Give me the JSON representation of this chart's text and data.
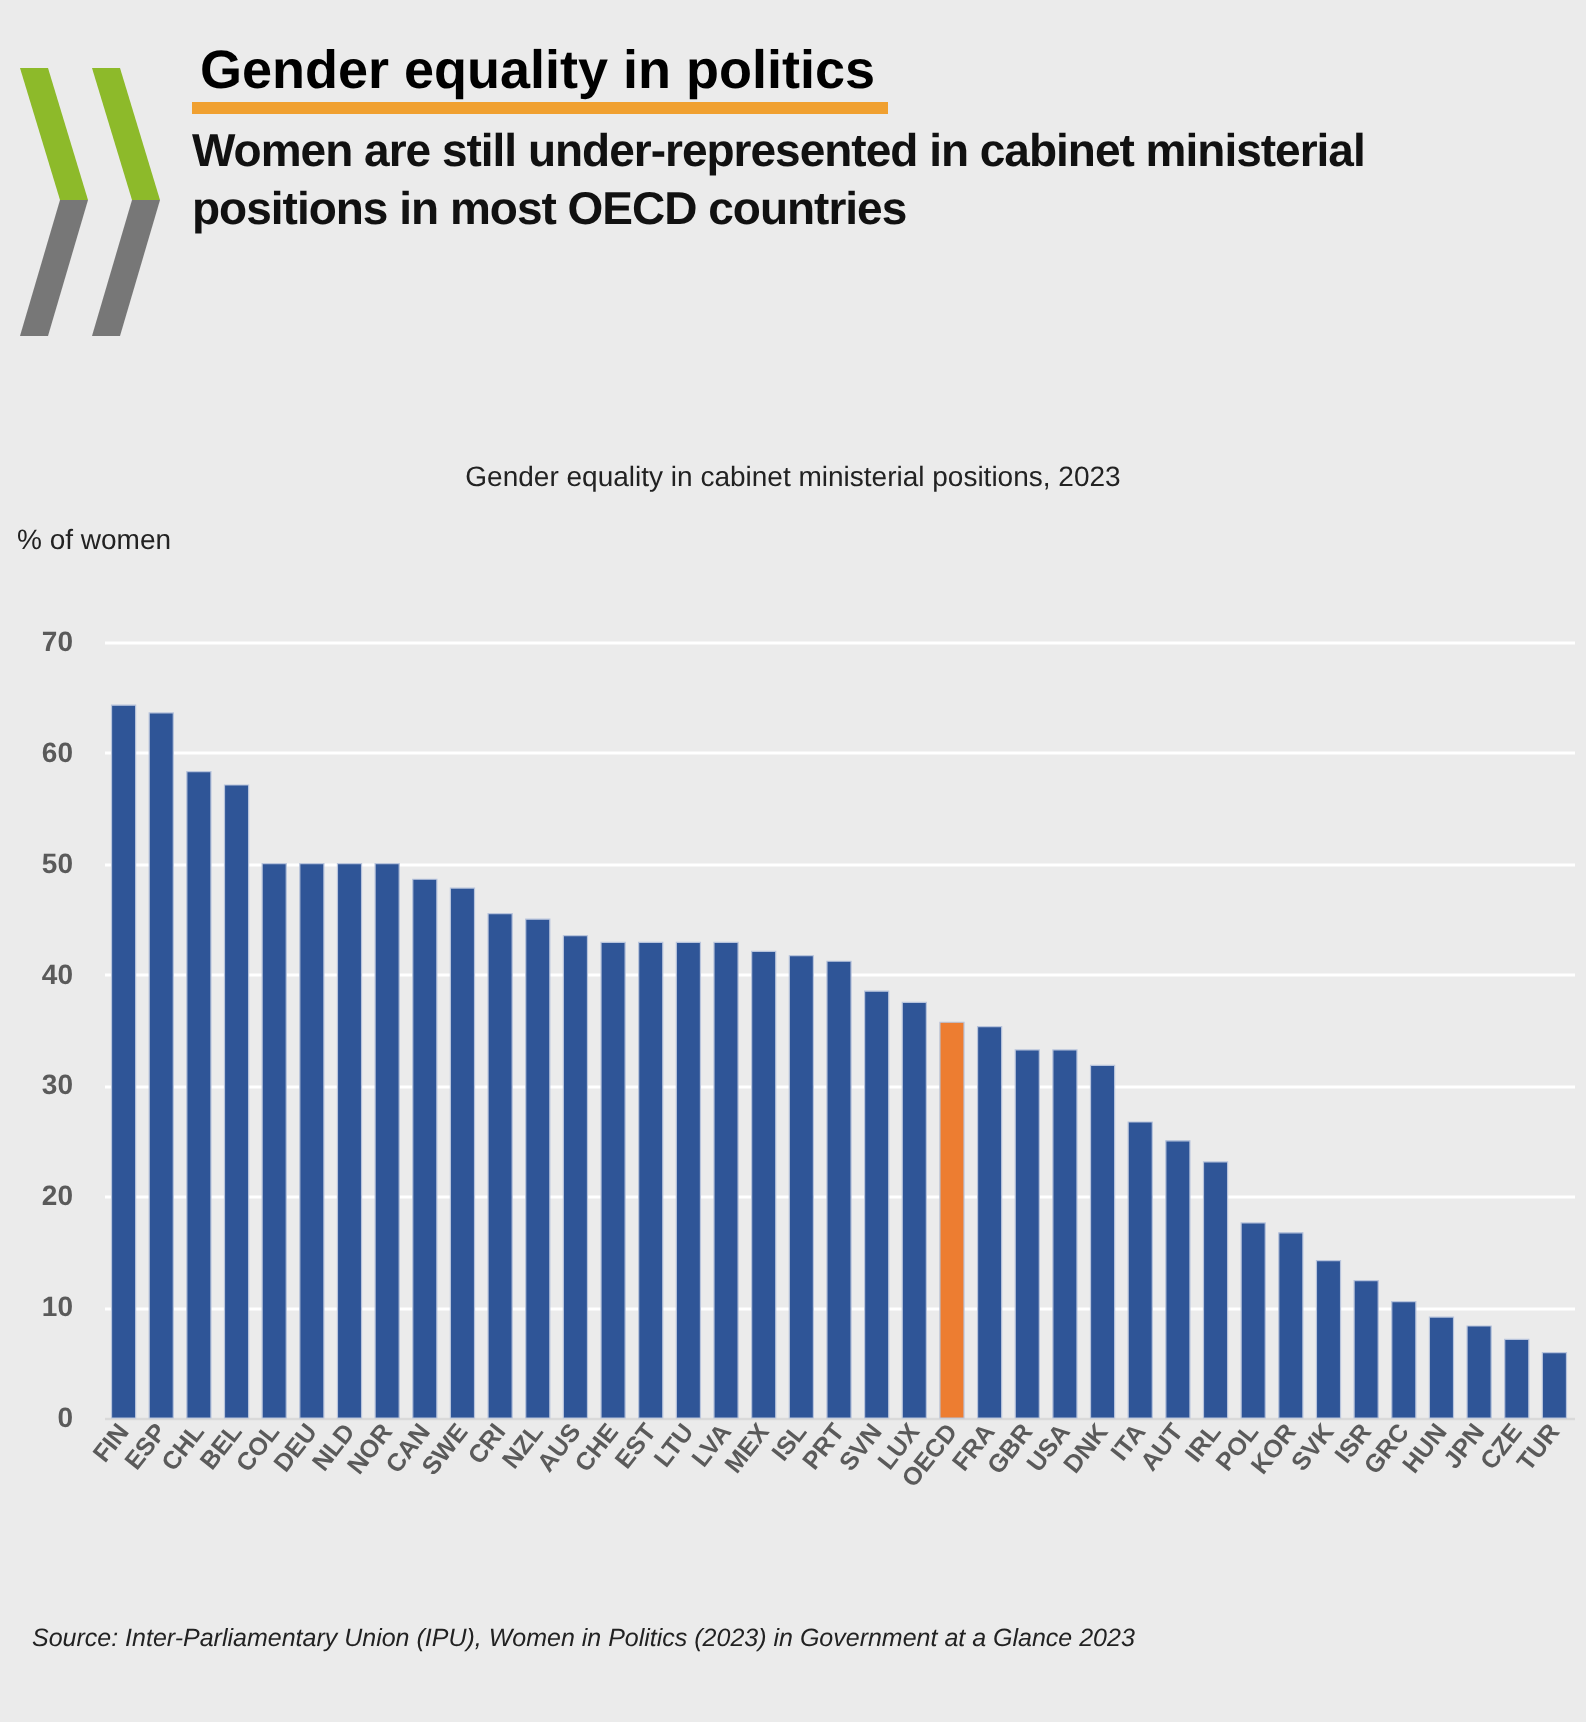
{
  "chart_data": {
    "type": "bar",
    "title": "Gender equality in politics",
    "subtitle": "Women are still under-represented in cabinet ministerial positions in most OECD countries",
    "ylabel": "% of women",
    "annotations": [
      "Gender equality in cabinet ministerial positions, 2023",
      "Source: Inter-Parliamentary Union (IPU), Women in Politics (2023) in Government at a Glance 2023"
    ],
    "categories": [
      "FIN",
      "ESP",
      "CHL",
      "BEL",
      "COL",
      "DEU",
      "NLD",
      "NOR",
      "CAN",
      "SWE",
      "CRI",
      "NZL",
      "AUS",
      "CHE",
      "EST",
      "LTU",
      "LVA",
      "MEX",
      "ISL",
      "PRT",
      "SVN",
      "LUX",
      "OECD",
      "FRA",
      "GBR",
      "USA",
      "DNK",
      "ITA",
      "AUT",
      "IRL",
      "POL",
      "KOR",
      "SVK",
      "ISR",
      "GRC",
      "HUN",
      "JPN",
      "CZE",
      "TUR"
    ],
    "values": [
      64.3,
      63.6,
      58.3,
      57.1,
      50,
      50,
      50,
      50,
      48.6,
      47.8,
      45.5,
      45.0,
      43.5,
      42.9,
      42.9,
      42.9,
      42.9,
      42.1,
      41.7,
      41.2,
      38.5,
      37.5,
      35.7,
      35.3,
      33.2,
      33.2,
      31.8,
      26.7,
      25.0,
      23.1,
      17.6,
      16.7,
      14.2,
      12.4,
      10.5,
      9.1,
      8.3,
      7.1,
      5.9
    ],
    "colors": [
      "#2f5597",
      "#2f5597",
      "#2f5597",
      "#2f5597",
      "#2f5597",
      "#2f5597",
      "#2f5597",
      "#2f5597",
      "#2f5597",
      "#2f5597",
      "#2f5597",
      "#2f5597",
      "#2f5597",
      "#2f5597",
      "#2f5597",
      "#2f5597",
      "#2f5597",
      "#2f5597",
      "#2f5597",
      "#2f5597",
      "#2f5597",
      "#2f5597",
      "#ed7d31",
      "#2f5597",
      "#2f5597",
      "#2f5597",
      "#2f5597",
      "#2f5597",
      "#2f5597",
      "#2f5597",
      "#2f5597",
      "#2f5597",
      "#2f5597",
      "#2f5597",
      "#2f5597",
      "#2f5597",
      "#2f5597",
      "#2f5597",
      "#2f5597"
    ],
    "ylim": [
      0,
      70
    ],
    "yticks": [
      0,
      10,
      20,
      30,
      40,
      50,
      60,
      70
    ],
    "grid": "y"
  }
}
